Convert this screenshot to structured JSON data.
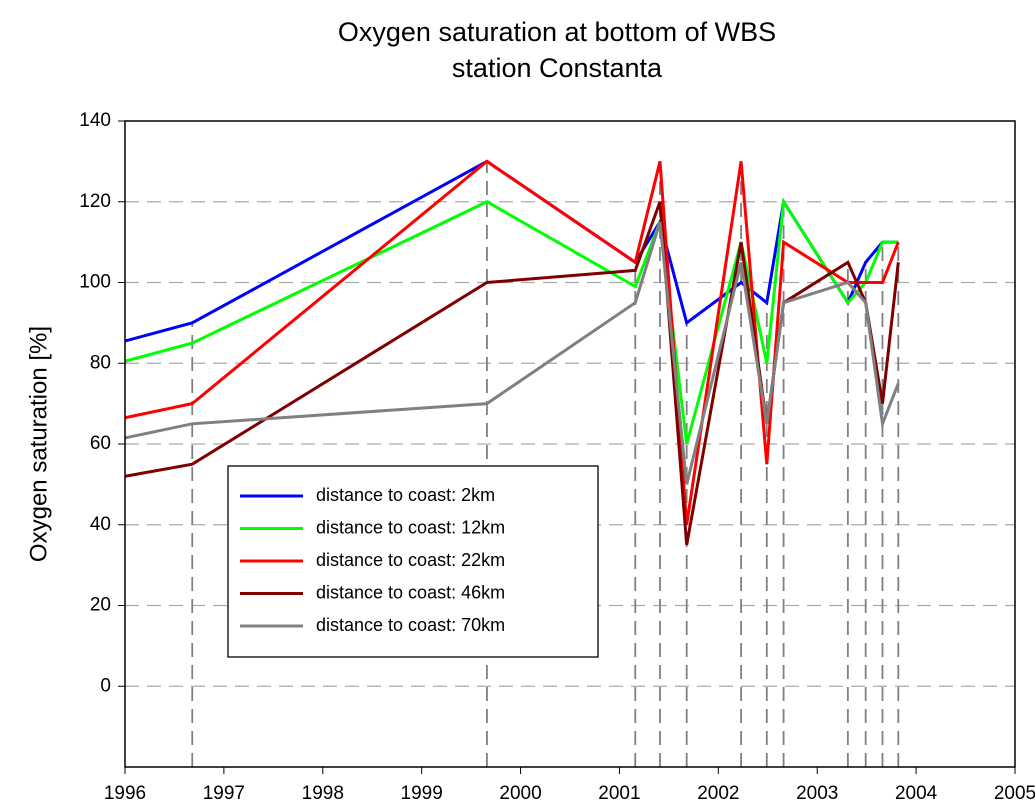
{
  "chart_data": {
    "type": "line",
    "title": [
      "Oxygen saturation at bottom of WBS",
      "station Constanta"
    ],
    "y_label": "Oxygen saturation [%]",
    "x": [
      1996,
      1996.68,
      1999.66,
      2001.16,
      2001.41,
      2001.68,
      2002.23,
      2002.49,
      2002.66,
      2003.31,
      2003.49,
      2003.66,
      2003.82
    ],
    "series": [
      {
        "name": "distance to coast: 2km",
        "color": "#0000ff",
        "values": [
          85.5,
          90,
          130,
          105,
          115,
          90,
          100,
          95,
          120,
          95,
          105,
          110,
          110
        ]
      },
      {
        "name": "distance to coast: 12km",
        "color": "#00ff00",
        "values": [
          80.5,
          85,
          120,
          99,
          115,
          60,
          110,
          80,
          120,
          95,
          100,
          110,
          110
        ]
      },
      {
        "name": "distance to coast: 22km",
        "color": "#ff0000",
        "values": [
          66.5,
          70,
          130,
          105,
          130,
          40,
          130,
          55,
          110,
          100,
          100,
          100,
          110
        ]
      },
      {
        "name": "distance to coast: 46km",
        "color": "#800000",
        "values": [
          52,
          55,
          100,
          103,
          120,
          35,
          110,
          65,
          95,
          105,
          95,
          70,
          105
        ]
      },
      {
        "name": "distance to coast: 70km",
        "color": "#808080",
        "values": [
          61.5,
          65,
          70,
          95,
          115,
          50,
          105,
          65,
          95,
          100,
          95,
          65,
          75
        ]
      }
    ],
    "xlim": [
      1996,
      2005
    ],
    "xticks": [
      1996,
      1997,
      1998,
      1999,
      2000,
      2001,
      2002,
      2003,
      2004,
      2005
    ],
    "ylim": [
      -20,
      140
    ],
    "yticks": [
      0,
      20,
      40,
      60,
      80,
      100,
      120,
      140
    ],
    "grid": true
  }
}
